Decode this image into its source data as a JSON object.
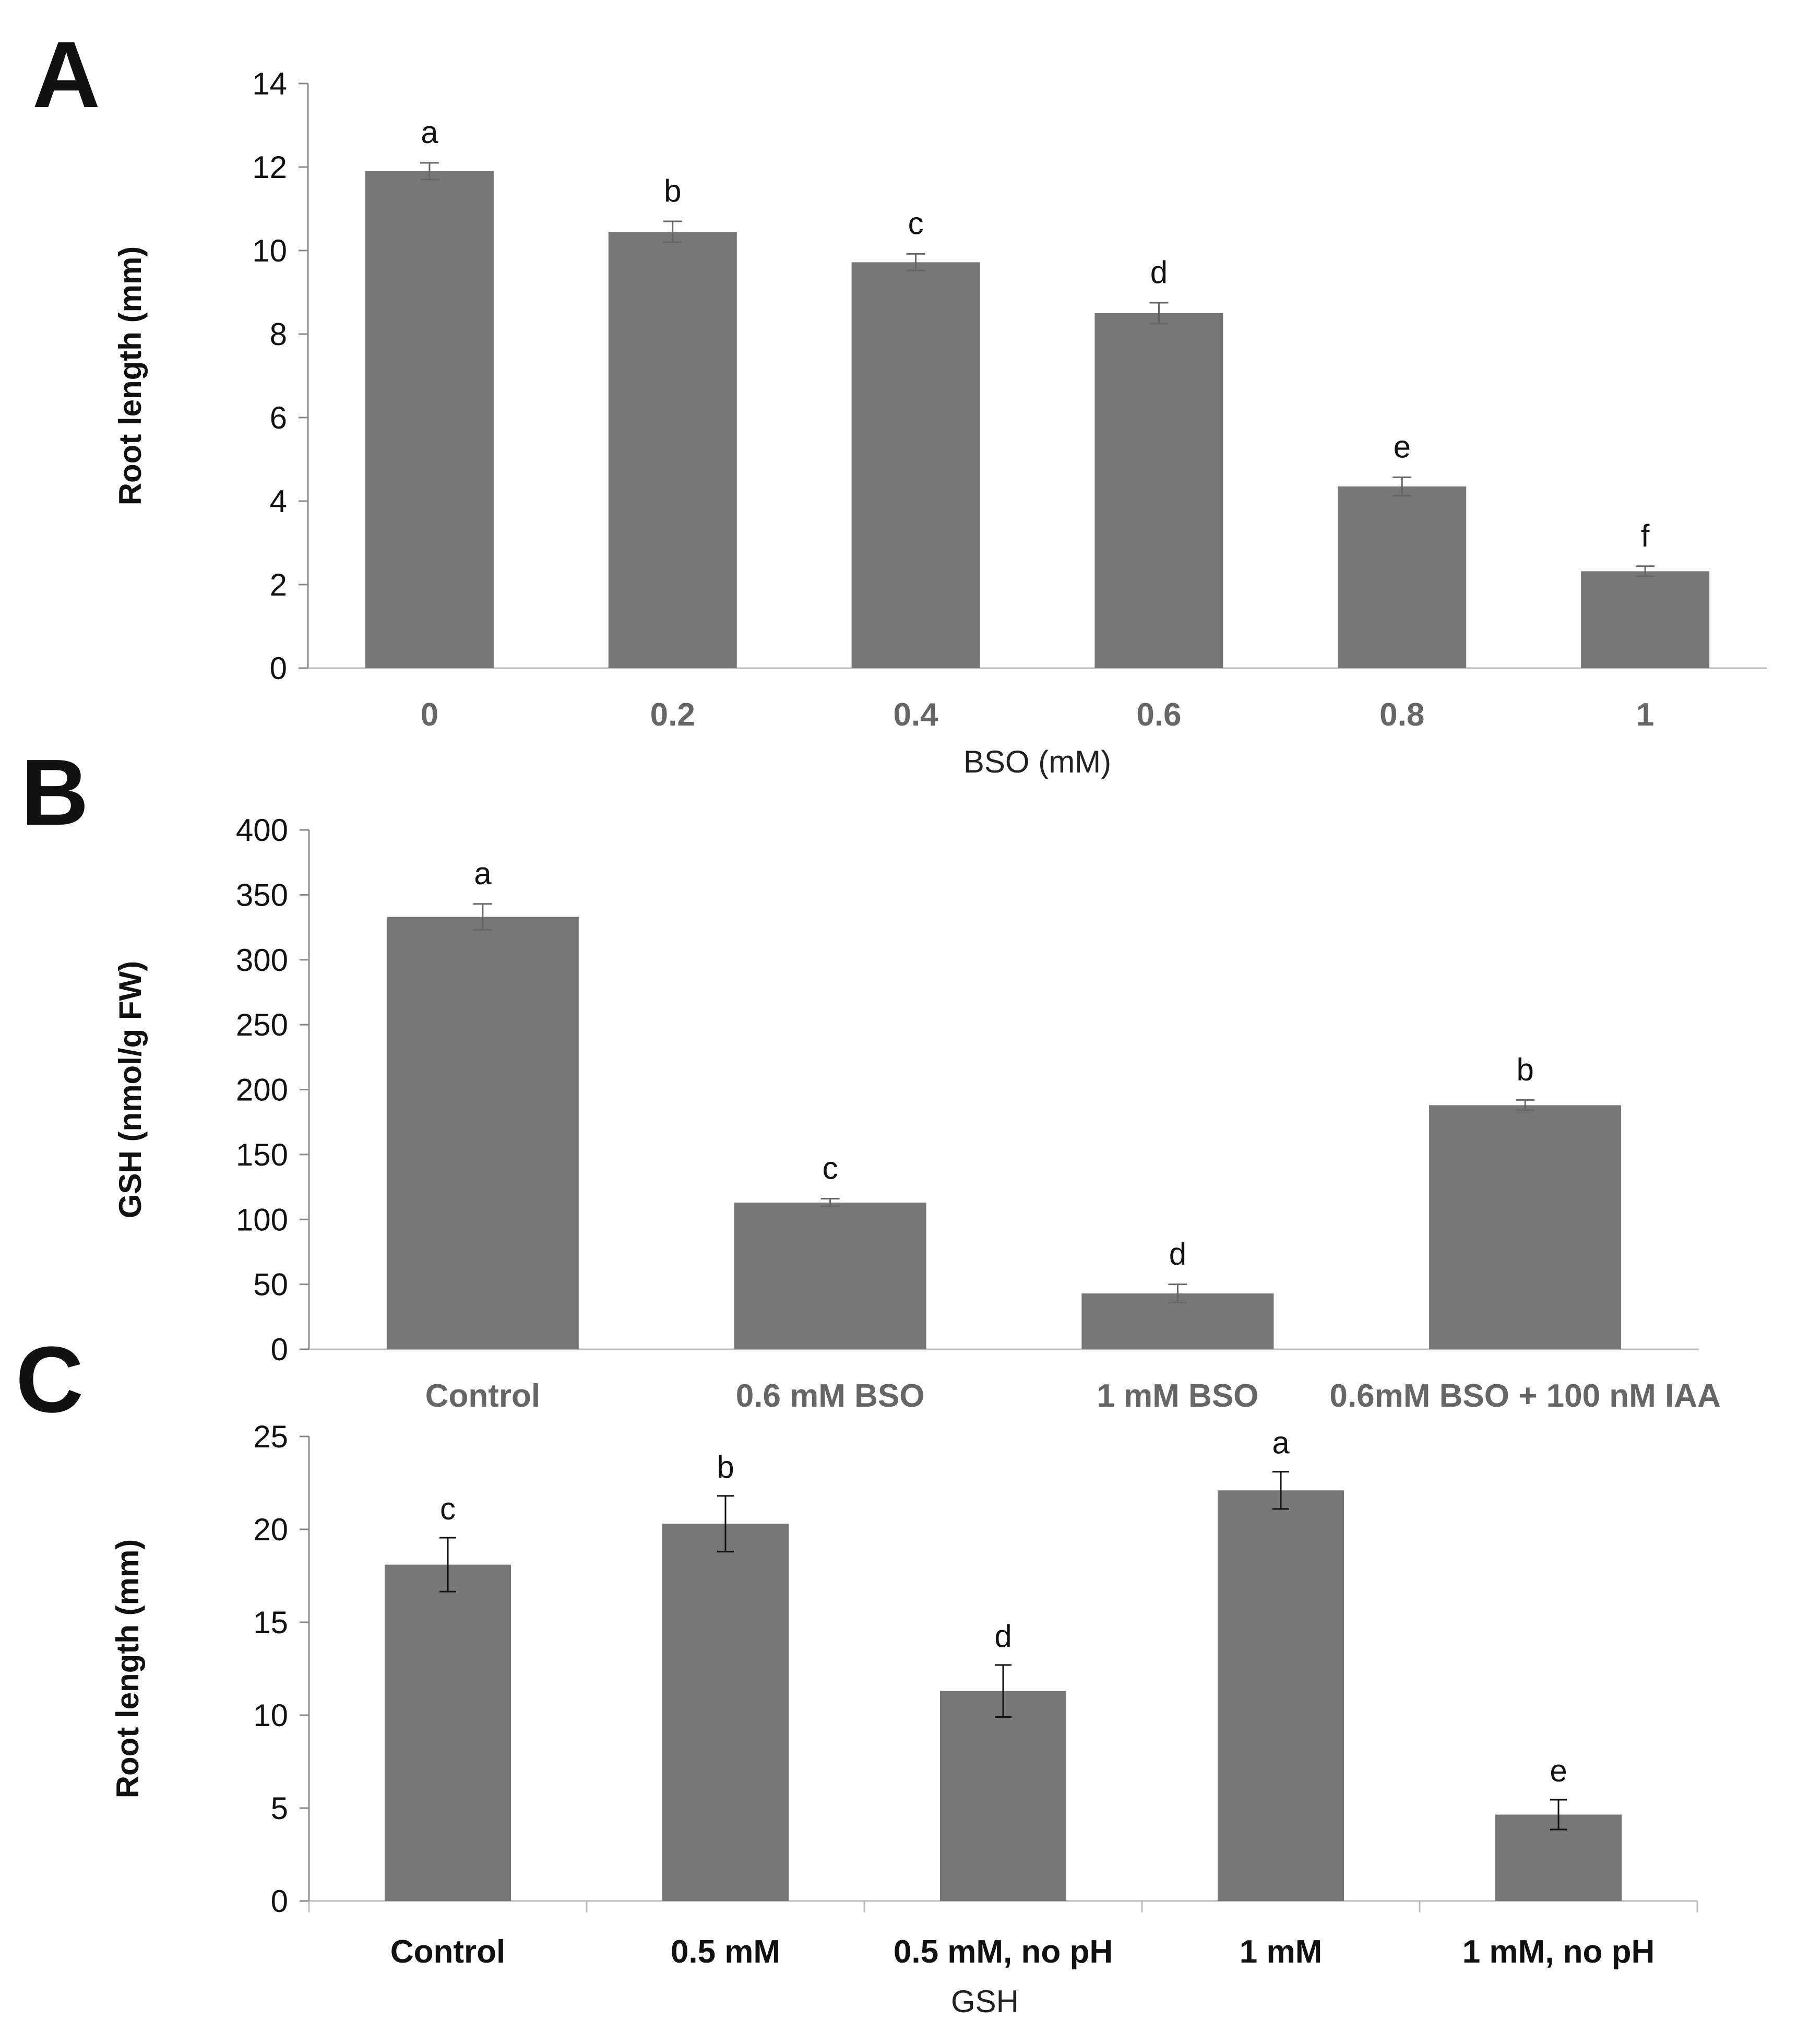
{
  "chart_data": [
    {
      "panel": "A",
      "type": "bar",
      "title": "",
      "xlabel": "BSO (mM)",
      "ylabel": "Root length (mm)",
      "categories": [
        "0",
        "0.2",
        "0.4",
        "0.6",
        "0.8",
        "1"
      ],
      "values": [
        11.9,
        10.45,
        9.72,
        8.5,
        4.35,
        2.32
      ],
      "errors": [
        0.2,
        0.25,
        0.2,
        0.25,
        0.22,
        0.12
      ],
      "significance": [
        "a",
        "b",
        "c",
        "d",
        "e",
        "f"
      ],
      "yticks": [
        "0",
        "2",
        "4",
        "6",
        "8",
        "10",
        "12",
        "14"
      ],
      "ylim": [
        0,
        14
      ],
      "bar_color": "#777777"
    },
    {
      "panel": "B",
      "type": "bar",
      "title": "",
      "xlabel": "",
      "ylabel": "GSH (nmol/g FW)",
      "categories": [
        "Control",
        "0.6 mM BSO",
        "1 mM BSO",
        "0.6mM BSO + 100 nM IAA"
      ],
      "values": [
        333,
        113,
        43,
        188
      ],
      "errors": [
        10,
        3,
        7,
        4
      ],
      "significance": [
        "a",
        "c",
        "d",
        "b"
      ],
      "yticks": [
        "0",
        "50",
        "100",
        "150",
        "200",
        "250",
        "300",
        "350",
        "400"
      ],
      "ylim": [
        0,
        400
      ],
      "bar_color": "#777777"
    },
    {
      "panel": "C",
      "type": "bar",
      "title": "",
      "xlabel": "GSH",
      "ylabel": "Root length (mm)",
      "categories": [
        "Control",
        "0.5 mM",
        "0.5 mM, no pH",
        "1 mM",
        "1 mM, no pH"
      ],
      "values": [
        18.1,
        20.3,
        11.3,
        22.1,
        4.65
      ],
      "errors": [
        1.45,
        1.5,
        1.4,
        1.0,
        0.8
      ],
      "significance": [
        "c",
        "b",
        "d",
        "a",
        "e"
      ],
      "yticks": [
        "0",
        "5",
        "10",
        "15",
        "20",
        "25"
      ],
      "ylim": [
        0,
        25
      ],
      "bar_color": "#777777"
    }
  ]
}
